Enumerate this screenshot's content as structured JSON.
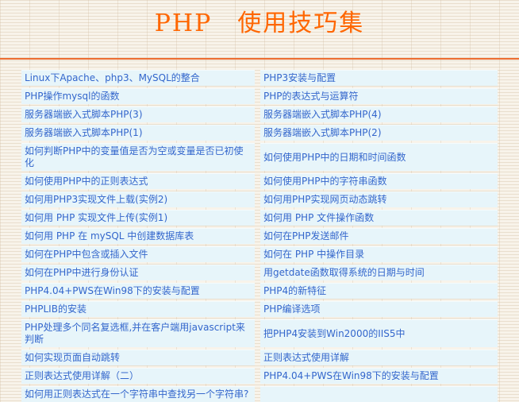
{
  "page": {
    "title": "PHP　使用技巧集",
    "title_color": "#ff6600",
    "rule_color": "#ed6d31",
    "link_color": "#3366cc",
    "cell_bg": "#e7f5fa",
    "background_color": "#f8f3ea"
  },
  "table": {
    "rows": [
      {
        "left": "Linux下Apache、php3、MySQL的整合",
        "right": "PHP3安装与配置"
      },
      {
        "left": "PHP操作mysql的函数",
        "right": "PHP的表达式与运算符"
      },
      {
        "left": "服务器端嵌入式脚本PHP(3)",
        "right": "服务器端嵌入式脚本PHP(4)"
      },
      {
        "left": "服务器端嵌入式脚本PHP(1)",
        "right": "服务器端嵌入式脚本PHP(2)"
      },
      {
        "left": "如何判断PHP中的变量值是否为空或变量是否已初使化",
        "right": "如何使用PHP中的日期和时间函数"
      },
      {
        "left": "如何使用PHP中的正则表达式",
        "right": "如何使用PHP中的字符串函数"
      },
      {
        "left": "如何用PHP3实现文件上载(实例2)",
        "right": "如何用PHP实现网页动态跳转"
      },
      {
        "left": "如何用 PHP 实现文件上传(实例1)",
        "right": "如何用 PHP 文件操作函数"
      },
      {
        "left": "如何用 PHP 在 mySQL 中创建数据库表",
        "right": "如何在PHP发送邮件"
      },
      {
        "left": "如何在PHP中包含或插入文件",
        "right": "如何在 PHP 中操作目录"
      },
      {
        "left": "如何在PHP中进行身份认证",
        "right": "用getdate函数取得系统的日期与时间"
      },
      {
        "left": "PHP4.04+PWS在Win98下的安装与配置",
        "right": "PHP4的新特征"
      },
      {
        "left": "PHPLIB的安装",
        "right": "PHP编译选项"
      },
      {
        "left": "PHP处理多个同名复选框,并在客户端用javascript来判断",
        "right": "把PHP4安装到Win2000的IIS5中"
      },
      {
        "left": "如何实现页面自动跳转",
        "right": "正则表达式使用详解"
      },
      {
        "left": "正则表达式使用详解（二）",
        "right": "PHP4.04+PWS在Win98下的安装与配置"
      },
      {
        "left": "如何用正则表达式在一个字符串中查找另一个字符串?",
        "right": ""
      }
    ]
  }
}
